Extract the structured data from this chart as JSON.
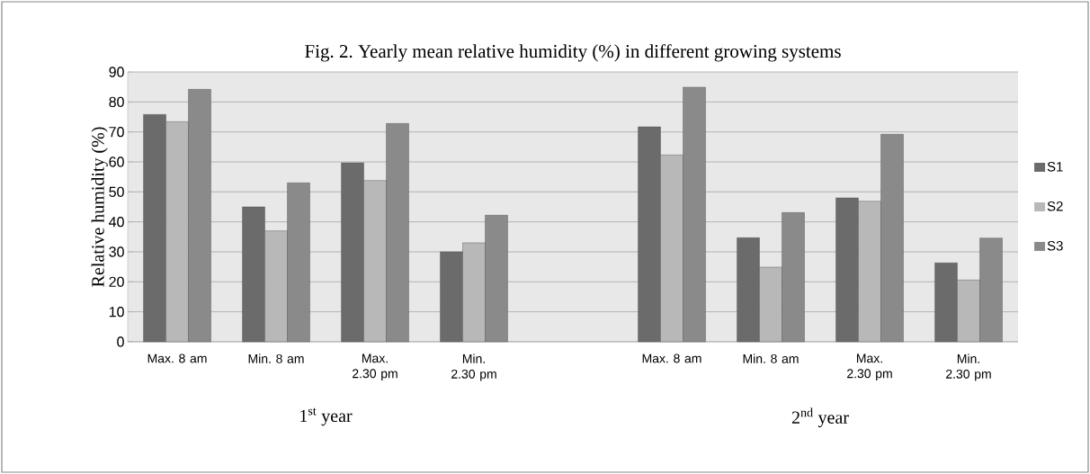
{
  "chart_data": {
    "type": "bar",
    "title": "Fig. 2. Yearly mean relative humidity (%) in different growing systems",
    "ylabel": "Relative humidity (%)",
    "categories": [
      "Max. 8 am",
      "Min. 8 am",
      "Max. 2.30 pm",
      "Min. 2.30 pm",
      null,
      "Max. 8 am",
      "Min. 8 am",
      "Max. 2.30 pm",
      "Min. 2.30 pm"
    ],
    "series": [
      {
        "name": "S1",
        "color": "#6b6b6b",
        "values": [
          75.8,
          45,
          59.7,
          30,
          null,
          71.7,
          34.7,
          48,
          26.3
        ]
      },
      {
        "name": "S2",
        "color": "#b8b8b8",
        "values": [
          73.4,
          37,
          53.8,
          33,
          null,
          62.3,
          24.9,
          46.9,
          20.6
        ]
      },
      {
        "name": "S3",
        "color": "#8a8a8a",
        "values": [
          84.2,
          53,
          72.8,
          42.2,
          null,
          84.9,
          43.1,
          69.2,
          34.6
        ]
      }
    ],
    "ylim": [
      0,
      90
    ],
    "yticks": [
      0,
      10,
      20,
      30,
      40,
      50,
      60,
      70,
      80,
      90
    ],
    "grid": "y",
    "legend": "right",
    "annotations": [
      "1$^{st}$ year",
      "2$^{nd}$ year"
    ]
  }
}
